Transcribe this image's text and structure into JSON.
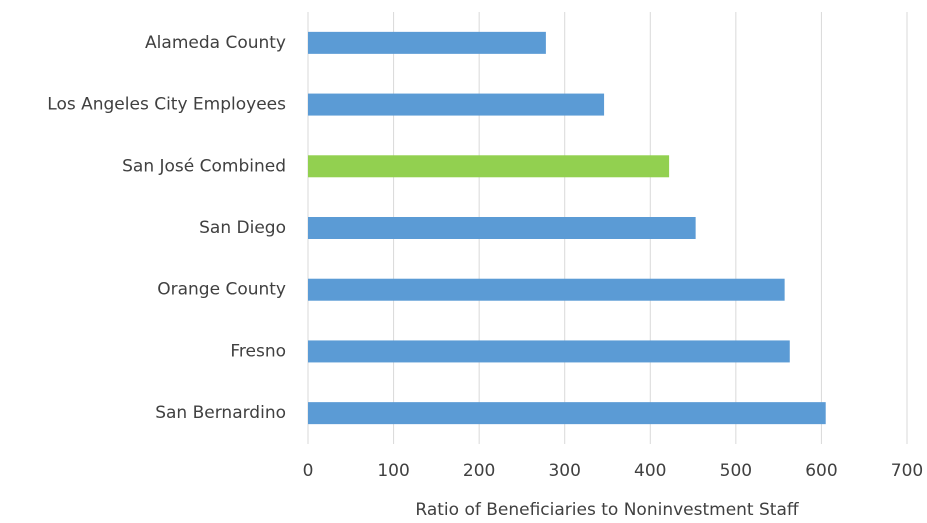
{
  "chart_data": {
    "type": "barh",
    "categories": [
      "Alameda County",
      "Los Angeles City Employees",
      "San José Combined",
      "San Diego",
      "Orange County",
      "Fresno",
      "San Bernardino"
    ],
    "values": [
      278,
      346,
      422,
      453,
      557,
      563,
      605
    ],
    "colors": [
      "#5b9bd5",
      "#5b9bd5",
      "#92d050",
      "#5b9bd5",
      "#5b9bd5",
      "#5b9bd5",
      "#5b9bd5"
    ],
    "x_label": "Ratio of Beneficiaries to Noninvestment Staff",
    "xlim": [
      0,
      700
    ],
    "xticks": [
      0,
      100,
      200,
      300,
      400,
      500,
      600,
      700
    ],
    "grid": true
  }
}
